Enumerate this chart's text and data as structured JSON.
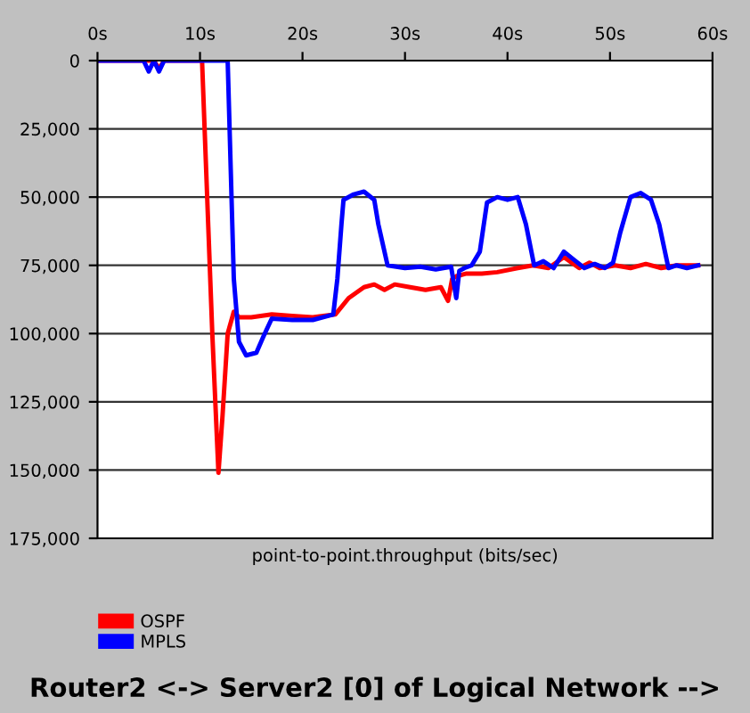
{
  "chart_data": {
    "type": "line",
    "title": "Router2 <-> Server2 [0] of Logical Network -->",
    "xlabel": "point-to-point.throughput (bits/sec)",
    "xlim": [
      0,
      60
    ],
    "xticks": [
      {
        "value": 0,
        "label": "0s"
      },
      {
        "value": 10,
        "label": "10s"
      },
      {
        "value": 20,
        "label": "20s"
      },
      {
        "value": 30,
        "label": "30s"
      },
      {
        "value": 40,
        "label": "40s"
      },
      {
        "value": 50,
        "label": "50s"
      },
      {
        "value": 60,
        "label": "60s"
      }
    ],
    "ylim": [
      175000,
      0
    ],
    "yticks": [
      {
        "value": 0,
        "label": "0"
      },
      {
        "value": 25000,
        "label": "25,000"
      },
      {
        "value": 50000,
        "label": "50,000"
      },
      {
        "value": 75000,
        "label": "75,000"
      },
      {
        "value": 100000,
        "label": "100,000"
      },
      {
        "value": 125000,
        "label": "125,000"
      },
      {
        "value": 150000,
        "label": "150,000"
      },
      {
        "value": 175000,
        "label": "175,000"
      }
    ],
    "grid": "y",
    "legend": "bottom left",
    "marker": "none",
    "line_style": "solid",
    "series": [
      {
        "name": "OSPF",
        "color": "#ff0000",
        "x": [
          0,
          5.5,
          6,
          6.5,
          7,
          10.2,
          10.6,
          11.2,
          11.8,
          12.2,
          12.7,
          13.3,
          13.8,
          15,
          17,
          19,
          21,
          23.2,
          24.5,
          26,
          27,
          28,
          29,
          30.5,
          32,
          33.5,
          34.2,
          34.6,
          35,
          36,
          37.5,
          39,
          41,
          42.5,
          44,
          45.5,
          47,
          48,
          49,
          50.5,
          52,
          53.5,
          55,
          56.5,
          58.6
        ],
        "values": [
          0,
          0,
          3000,
          0,
          0,
          0,
          40000,
          100000,
          151000,
          130000,
          100000,
          92000,
          94000,
          94000,
          93000,
          93500,
          94000,
          93000,
          87000,
          83000,
          82000,
          84000,
          82000,
          83000,
          84000,
          83000,
          88000,
          80000,
          79000,
          78000,
          78000,
          77500,
          76000,
          75000,
          76000,
          72000,
          76000,
          74000,
          76000,
          75000,
          76000,
          74500,
          76000,
          75000,
          75000
        ]
      },
      {
        "name": "MPLS",
        "color": "#0000ff",
        "x": [
          0,
          4.5,
          5,
          5.5,
          6,
          6.5,
          12.7,
          13,
          13.3,
          13.8,
          14.5,
          15.5,
          16.2,
          17,
          19,
          21,
          23,
          23.4,
          23.8,
          24,
          25,
          26,
          27,
          27.4,
          28.3,
          30,
          31.5,
          33,
          34.5,
          35,
          35.3,
          35.8,
          36.5,
          37.3,
          38,
          39,
          40,
          41,
          41.8,
          42.6,
          43.5,
          44.5,
          45.5,
          46.5,
          47.5,
          48.5,
          49.5,
          50.3,
          51,
          52,
          53,
          54,
          54.8,
          55.7,
          56.5,
          57.5,
          58.6
        ],
        "values": [
          0,
          0,
          4000,
          0,
          4000,
          0,
          0,
          40000,
          80000,
          103000,
          108000,
          107000,
          101000,
          94500,
          95000,
          95000,
          93000,
          80000,
          60000,
          51000,
          49000,
          48000,
          51000,
          60000,
          75000,
          76000,
          75500,
          76500,
          75500,
          87000,
          77000,
          76000,
          75000,
          70000,
          52000,
          50000,
          51000,
          50000,
          60000,
          75000,
          73500,
          76000,
          70000,
          73000,
          76000,
          74500,
          76000,
          74000,
          63000,
          50000,
          48500,
          51000,
          60000,
          76000,
          75000,
          76000,
          75000
        ]
      }
    ]
  }
}
